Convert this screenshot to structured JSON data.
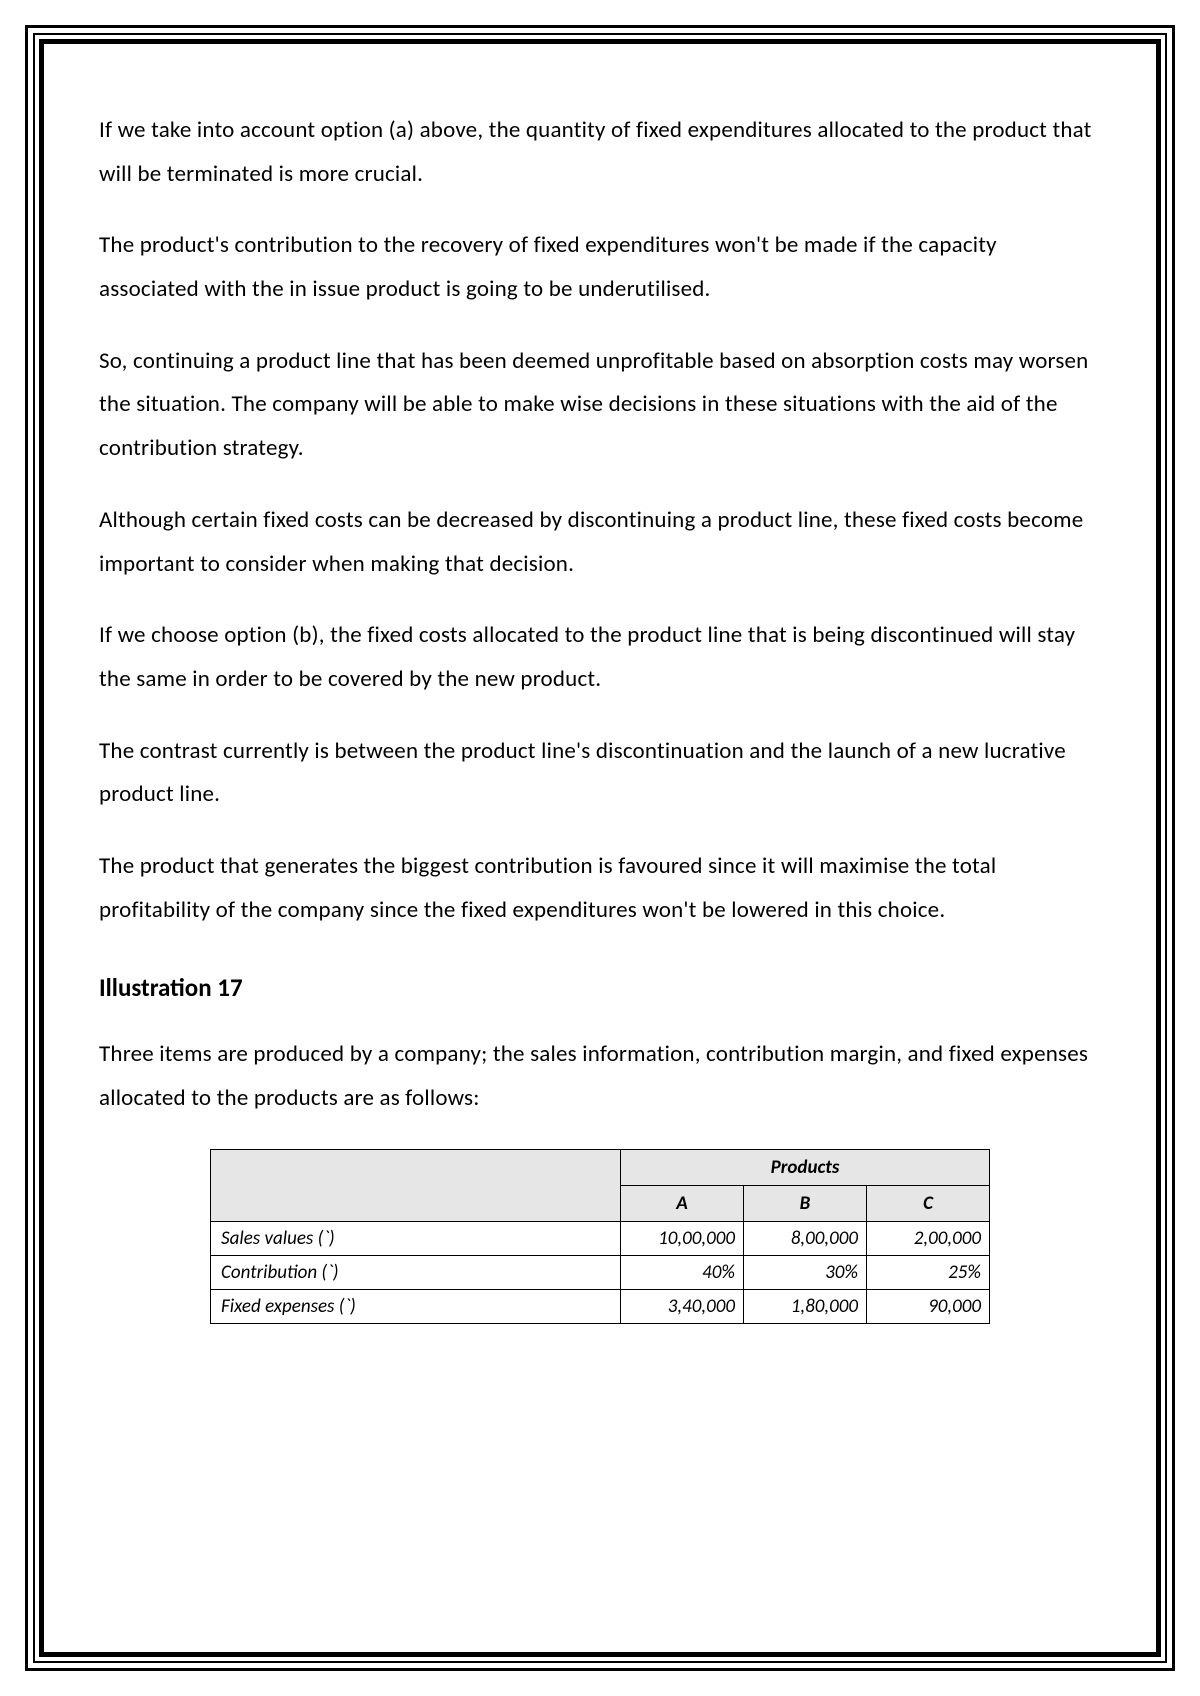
{
  "paragraphs": {
    "p1": "If we take into account option (a) above, the quantity of fixed expenditures allocated to the product that will be terminated is more crucial.",
    "p2": "The product's contribution to the recovery of fixed expenditures won't be made if the capacity associated with the in issue product is going to be underutilised.",
    "p3": "So, continuing a product line that has been deemed unprofitable based on absorption costs may worsen the situation. The company will be able to make wise decisions in these situations with the aid of the contribution strategy.",
    "p4": "Although certain fixed costs can be decreased by discontinuing a product line, these fixed costs become important to consider when making that decision.",
    "p5": "If we choose option (b), the fixed costs allocated to the product line that is being discontinued will stay the same in order to be covered by the new product.",
    "p6": "The contrast currently is between the product line's discontinuation and the launch of a new lucrative product line.",
    "p7": "The product that generates the biggest contribution is favoured since it will maximise the total profitability of the company since the fixed expenditures won't be lowered in this choice."
  },
  "heading": "Illustration 17",
  "intro": "Three items are produced by a company; the sales information, contribution margin, and fixed expenses allocated to the products are as follows:",
  "table": {
    "group_header": "Products",
    "columns": {
      "a": "A",
      "b": "B",
      "c": "C"
    },
    "rows": [
      {
        "label": "Sales values (`)",
        "a": "10,00,000",
        "b": "8,00,000",
        "c": "2,00,000"
      },
      {
        "label": "Contribution (`)",
        "a": "40%",
        "b": "30%",
        "c": "25%"
      },
      {
        "label": "Fixed expenses  (`)",
        "a": "3,40,000",
        "b": "1,80,000",
        "c": "90,000"
      }
    ]
  }
}
